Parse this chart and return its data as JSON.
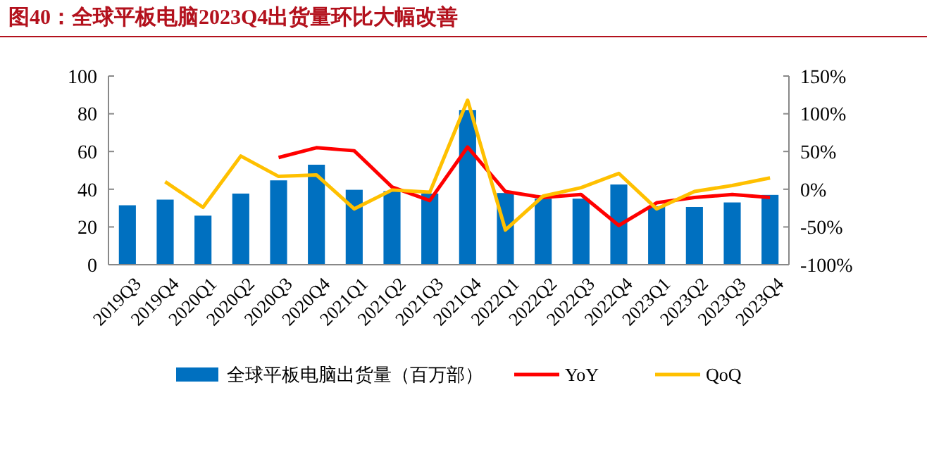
{
  "chart_data": {
    "type": "bar",
    "title": "图40：全球平板电脑2023Q4出货量环比大幅改善",
    "categories": [
      "2019Q3",
      "2019Q4",
      "2020Q1",
      "2020Q2",
      "2020Q3",
      "2020Q4",
      "2021Q1",
      "2021Q2",
      "2021Q3",
      "2021Q4",
      "2022Q1",
      "2022Q2",
      "2022Q3",
      "2022Q4",
      "2023Q1",
      "2023Q2",
      "2023Q3",
      "2023Q4"
    ],
    "series": [
      {
        "name": "全球平板电脑出货量（百万部）",
        "type": "bar",
        "color": "#0070c0",
        "values": [
          31.5,
          34.5,
          26,
          37.7,
          44.7,
          53,
          39.7,
          39,
          37.7,
          82,
          38,
          35,
          35,
          42.5,
          31,
          30.6,
          33,
          37
        ]
      },
      {
        "name": "YoY",
        "type": "line",
        "axis": "y2",
        "color": "#ff0000",
        "values": [
          null,
          null,
          null,
          null,
          42,
          55,
          51,
          3,
          -15,
          56,
          -3,
          -11,
          -7,
          -48,
          -18,
          -11,
          -7,
          -11
        ]
      },
      {
        "name": "QoQ",
        "type": "line",
        "axis": "y2",
        "color": "#ffc000",
        "values": [
          null,
          10,
          -24,
          44,
          17,
          19,
          -26,
          -1,
          -4,
          118,
          -54,
          -9,
          2,
          21,
          -26,
          -3,
          5,
          15
        ]
      }
    ],
    "ylim": [
      0,
      100
    ],
    "yticks": [
      0,
      20,
      40,
      60,
      80,
      100
    ],
    "y2lim": [
      -100,
      150
    ],
    "y2ticks": [
      {
        "value": -100,
        "label": "-100%"
      },
      {
        "value": -50,
        "label": "-50%"
      },
      {
        "value": 0,
        "label": "0%"
      },
      {
        "value": 50,
        "label": "50%"
      },
      {
        "value": 100,
        "label": "100%"
      },
      {
        "value": 150,
        "label": "150%"
      }
    ],
    "legend": "bottom",
    "grid": false,
    "marker": "none",
    "line_style": "solid"
  }
}
